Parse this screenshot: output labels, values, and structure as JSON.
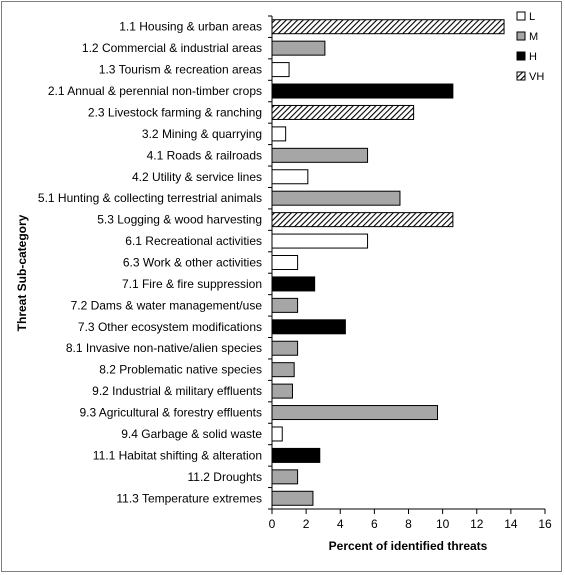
{
  "chart_data": {
    "type": "bar",
    "orientation": "horizontal",
    "xlabel": "Percent of identified threats",
    "ylabel": "Threat Sub-category",
    "xlim": [
      0,
      16
    ],
    "xticks": [
      0,
      2,
      4,
      6,
      8,
      10,
      12,
      14,
      16
    ],
    "grid": false,
    "legend_position": "top-right",
    "legend": [
      {
        "key": "L",
        "label": "L",
        "fill": "white"
      },
      {
        "key": "M",
        "label": "M",
        "fill": "gray"
      },
      {
        "key": "H",
        "label": "H",
        "fill": "black"
      },
      {
        "key": "VH",
        "label": "VH",
        "fill": "hatched"
      }
    ],
    "colors": {
      "L": "#ffffff",
      "M": "#a6a6a6",
      "H": "#000000",
      "VH": "#000000"
    },
    "categories": [
      "1.1 Housing & urban areas",
      "1.2 Commercial & industrial areas",
      "1.3 Tourism & recreation areas",
      "2.1 Annual & perennial non-timber crops",
      "2.3 Livestock farming & ranching",
      "3.2 Mining & quarrying",
      "4.1 Roads & railroads",
      "4.2 Utility & service lines",
      "5.1 Hunting & collecting terrestrial animals",
      "5.3 Logging & wood harvesting",
      "6.1 Recreational activities",
      "6.3 Work & other activities",
      "7.1 Fire & fire suppression",
      "7.2 Dams & water management/use",
      "7.3 Other ecosystem modifications",
      "8.1 Invasive non-native/alien species",
      "8.2 Problematic native species",
      "9.2 Industrial & military effluents",
      "9.3 Agricultural & forestry effluents",
      "9.4 Garbage & solid waste",
      "11.1 Habitat shifting & alteration",
      "11.2 Droughts",
      "11.3 Temperature extremes"
    ],
    "values": [
      13.6,
      3.1,
      1.0,
      10.6,
      8.3,
      0.8,
      5.6,
      2.1,
      7.5,
      10.6,
      5.6,
      1.5,
      2.5,
      1.5,
      4.3,
      1.5,
      1.3,
      1.2,
      9.7,
      0.6,
      2.8,
      1.5,
      2.4
    ],
    "levels": [
      "VH",
      "M",
      "L",
      "H",
      "VH",
      "L",
      "M",
      "L",
      "M",
      "VH",
      "L",
      "L",
      "H",
      "M",
      "H",
      "M",
      "M",
      "M",
      "M",
      "L",
      "H",
      "M",
      "M"
    ]
  }
}
